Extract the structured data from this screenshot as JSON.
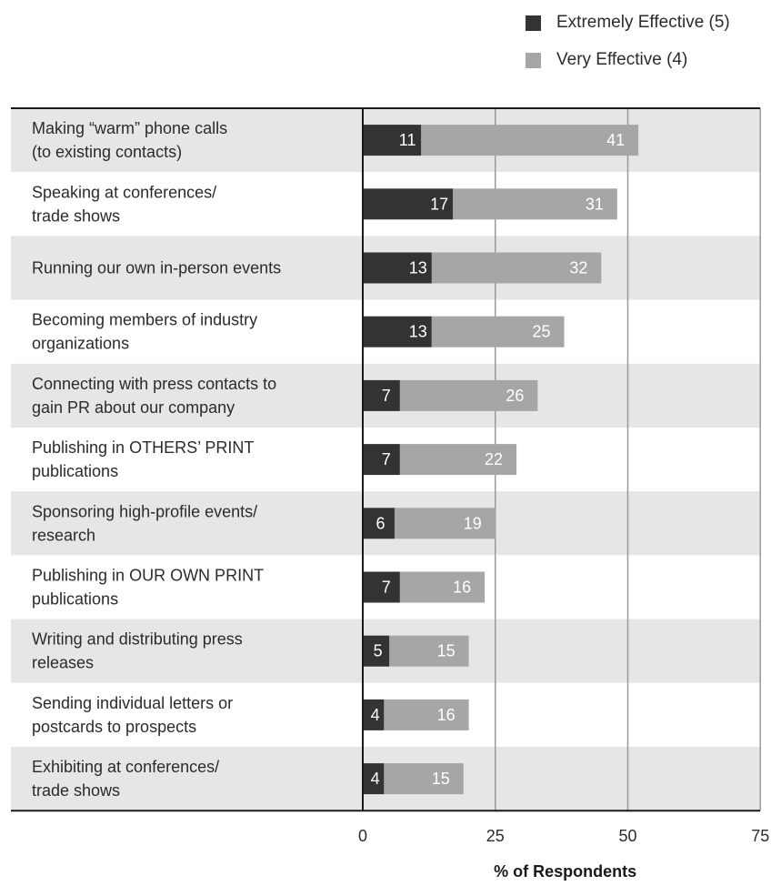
{
  "chart_data": {
    "type": "bar",
    "orientation": "horizontal",
    "stacked": true,
    "categories": [
      [
        "Making “warm” phone calls",
        "(to existing contacts)"
      ],
      [
        "Speaking at conferences/",
        "trade shows"
      ],
      [
        "Running our own in-person events"
      ],
      [
        "Becoming members of industry",
        "organizations"
      ],
      [
        "Connecting with press contacts to",
        "gain PR about our company"
      ],
      [
        "Publishing in OTHERS’ PRINT",
        "publications"
      ],
      [
        "Sponsoring high-profile events/",
        "research"
      ],
      [
        "Publishing in OUR OWN PRINT",
        "publications"
      ],
      [
        "Writing and distributing press",
        "releases"
      ],
      [
        "Sending individual letters or",
        "postcards to prospects"
      ],
      [
        "Exhibiting at conferences/",
        "trade shows"
      ]
    ],
    "series": [
      {
        "name": "Extremely Effective (5)",
        "color": "#333333",
        "values": [
          11,
          17,
          13,
          13,
          7,
          7,
          6,
          7,
          5,
          4,
          4
        ]
      },
      {
        "name": "Very Effective (4)",
        "color": "#a6a6a6",
        "values": [
          41,
          31,
          32,
          25,
          26,
          22,
          19,
          16,
          15,
          16,
          15
        ]
      }
    ],
    "xlabel": "% of Respondents",
    "ylabel": "",
    "xlim": [
      0,
      75
    ],
    "xticks": [
      0,
      25,
      50,
      75
    ],
    "grid": true,
    "legend": "top-right",
    "row_shading": [
      "#e6e6e6",
      "#ffffff"
    ]
  }
}
